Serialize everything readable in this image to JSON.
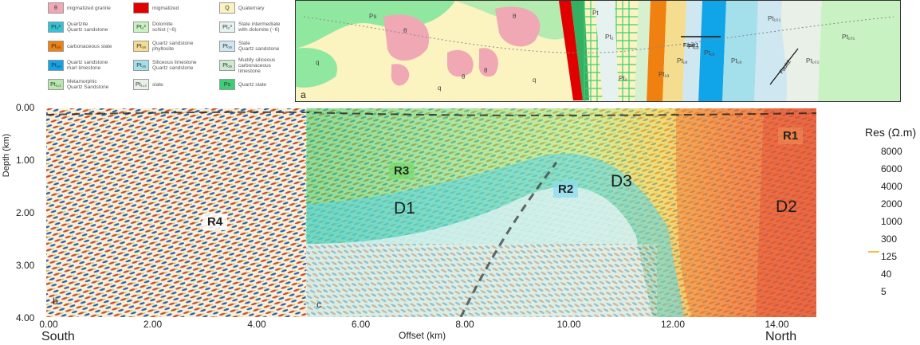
{
  "legend": [
    {
      "code": "θ",
      "label": "migmatized granite",
      "color": "#f0a8b4"
    },
    {
      "code": "",
      "label": "migmatized",
      "color": "#e00000"
    },
    {
      "code": "Q",
      "label": "Quaternary",
      "color": "#fbf3c0"
    },
    {
      "code": "Pt₃²",
      "label": "Quartzite\nQuartz sandstone",
      "color": "#33c2d6"
    },
    {
      "code": "Pt₂²",
      "label": "Dolomite\nschist (−6)",
      "color": "#c9f2c2"
    },
    {
      "code": "Pt₂³",
      "label": "Slate intermediate\nwith dolomite (−6)",
      "color": "#e6f2f0"
    },
    {
      "code": "Pt₁ₐ",
      "label": "carbonaceous slate",
      "color": "#f08010"
    },
    {
      "code": "Pt₁ₐ",
      "label": "Quartz sandstone\nphyllosite",
      "color": "#f5dd90"
    },
    {
      "code": "Pt₁ₐ",
      "label": "Slate\nQuartz sandstone",
      "color": "#cfe7f0"
    },
    {
      "code": "Pt₁ₐ",
      "label": "Quartz sandstone\nmarl limestone",
      "color": "#10a4e8"
    },
    {
      "code": "Pt₁ₐ",
      "label": "Siliceous limestone\nQuartz sandstone",
      "color": "#a4e0ec"
    },
    {
      "code": "Pt₁ₐ",
      "label": "Muddy siliceous\ncarbonaceous\nlimestone",
      "color": "#cfead0"
    },
    {
      "code": "Pt₁꜀₁",
      "label": "Metamorphic\nQuartz Sandstone",
      "color": "#b8e8b0"
    },
    {
      "code": "Pt₁꜀₂",
      "label": "slate",
      "color": "#e8f0e8"
    },
    {
      "code": "Ps",
      "label": "Quartz slate",
      "color": "#3ccf78"
    }
  ],
  "map": {
    "panel_label": "a",
    "labels": [
      "Ps",
      "q",
      "q",
      "q",
      "θ",
      "θ",
      "θ",
      "θ",
      "Pt",
      "Pt₂",
      "Pt₂",
      "Pt₁ₐ",
      "Pt₁ₐ",
      "Pt₁ₐ",
      "Pt₁ₐ",
      "Pt₁ₐ",
      "Pt₁₀₁",
      "Pt₁₀₂",
      "Pt₁₀₁"
    ],
    "fault1": "Fault1",
    "fault2": "Fault2"
  },
  "section": {
    "ylabel": "Depth (km)",
    "xlabel": "Offset (km)",
    "yticks": [
      "0.00",
      "1.00",
      "2.00",
      "3.00",
      "4.00"
    ],
    "xticks": [
      "0.00",
      "2.00",
      "4.00",
      "6.00",
      "8.00",
      "10.00",
      "12.00",
      "14.00"
    ],
    "south": "South",
    "north": "North",
    "panel_b": "b",
    "panel_c": "c",
    "zones": {
      "d1": "D1",
      "d2": "D2",
      "d3": "D3",
      "r1": "R1",
      "r2": "R2",
      "r3": "R3",
      "r4": "R4"
    }
  },
  "resistivity": {
    "title": "Res (Ω.m)",
    "values": [
      "8000",
      "6000",
      "4000",
      "2000",
      "1000",
      "300",
      "125",
      "40",
      "5"
    ]
  }
}
